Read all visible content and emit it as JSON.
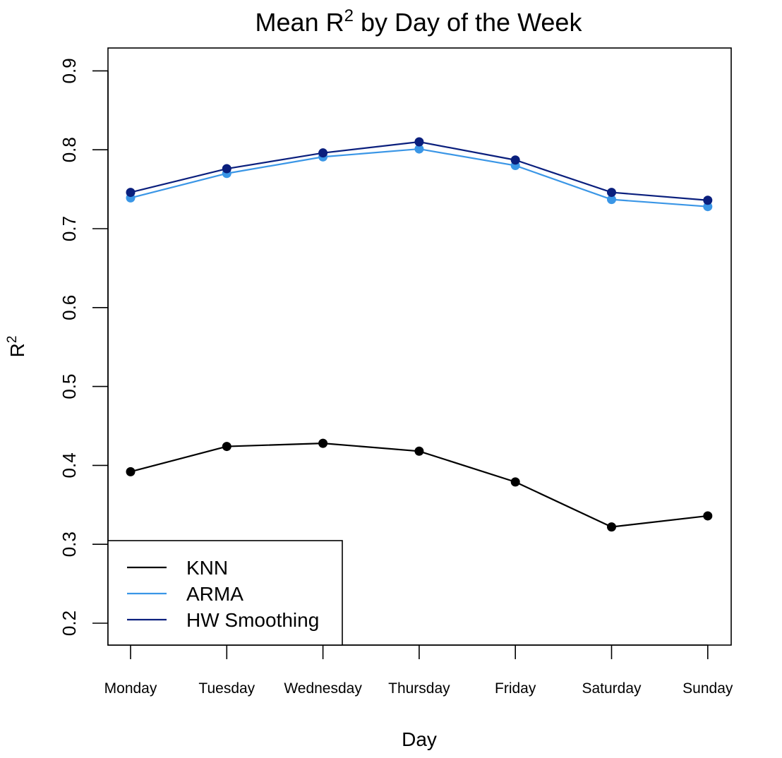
{
  "chart_data": {
    "type": "line",
    "title": "Mean R² by Day of the Week",
    "title_main": "Mean R",
    "title_sup": "2",
    "title_rest": " by Day of the Week",
    "xlabel": "Day",
    "ylabel_main": "R",
    "ylabel_sup": "2",
    "categories": [
      "Monday",
      "Tuesday",
      "Wednesday",
      "Thursday",
      "Friday",
      "Saturday",
      "Sunday"
    ],
    "ylim": [
      0.2,
      0.9
    ],
    "yticks": [
      "0.2",
      "0.3",
      "0.4",
      "0.5",
      "0.6",
      "0.7",
      "0.8",
      "0.9"
    ],
    "grid": false,
    "legend_position": "bottom-left",
    "series": [
      {
        "name": "KNN",
        "color": "#000000",
        "values": [
          0.392,
          0.424,
          0.428,
          0.418,
          0.379,
          0.322,
          0.336
        ]
      },
      {
        "name": "ARMA",
        "color": "#3a96e6",
        "values": [
          0.739,
          0.77,
          0.791,
          0.801,
          0.78,
          0.737,
          0.728
        ]
      },
      {
        "name": "HW Smoothing",
        "color": "#0a1f7d",
        "values": [
          0.746,
          0.776,
          0.796,
          0.81,
          0.787,
          0.746,
          0.736
        ]
      }
    ]
  }
}
